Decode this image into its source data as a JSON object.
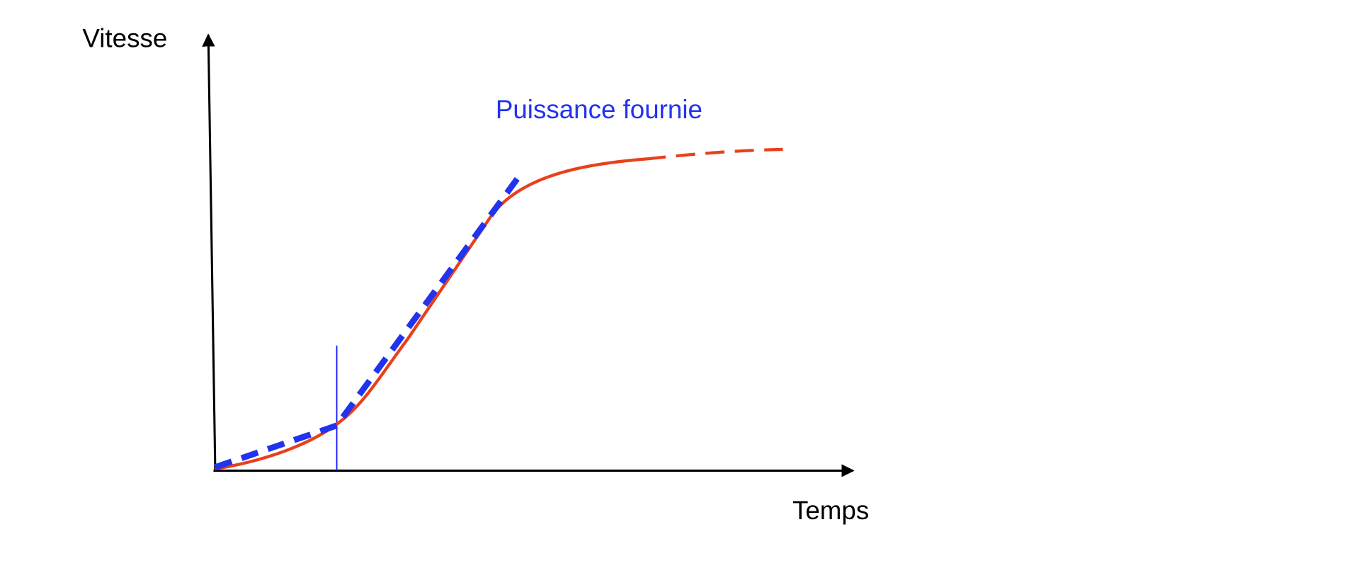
{
  "y_axis_label": "Vitesse",
  "x_axis_label": "Temps",
  "annotation": "Puissance fournie"
}
